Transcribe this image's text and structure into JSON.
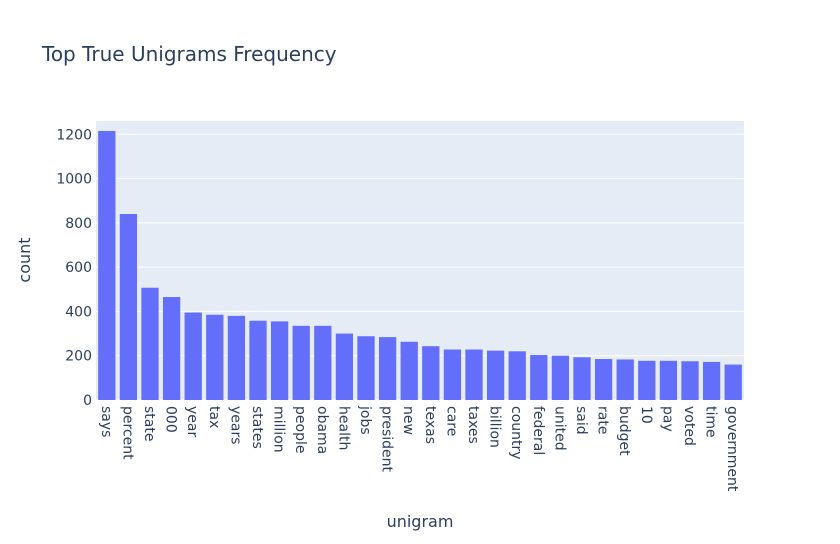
{
  "chart_data": {
    "type": "bar",
    "title": "Top True Unigrams Frequency",
    "xlabel": "unigram",
    "ylabel": "count",
    "ylim": [
      0,
      1260
    ],
    "yticks": [
      0,
      200,
      400,
      600,
      800,
      1000,
      1200
    ],
    "grid": true,
    "colors": {
      "bar": "#636efa",
      "plot_bg": "#e5ecf6",
      "grid": "#ffffff",
      "text": "#2a3f5f"
    },
    "categories": [
      "says",
      "percent",
      "state",
      "000",
      "year",
      "tax",
      "years",
      "states",
      "million",
      "people",
      "obama",
      "health",
      "jobs",
      "president",
      "new",
      "texas",
      "care",
      "taxes",
      "billion",
      "country",
      "federal",
      "united",
      "said",
      "rate",
      "budget",
      "10",
      "pay",
      "voted",
      "time",
      "government"
    ],
    "values": [
      1215,
      840,
      507,
      465,
      395,
      385,
      380,
      358,
      355,
      335,
      335,
      300,
      288,
      284,
      263,
      243,
      228,
      228,
      223,
      220,
      203,
      200,
      193,
      185,
      183,
      177,
      177,
      175,
      172,
      160
    ]
  }
}
